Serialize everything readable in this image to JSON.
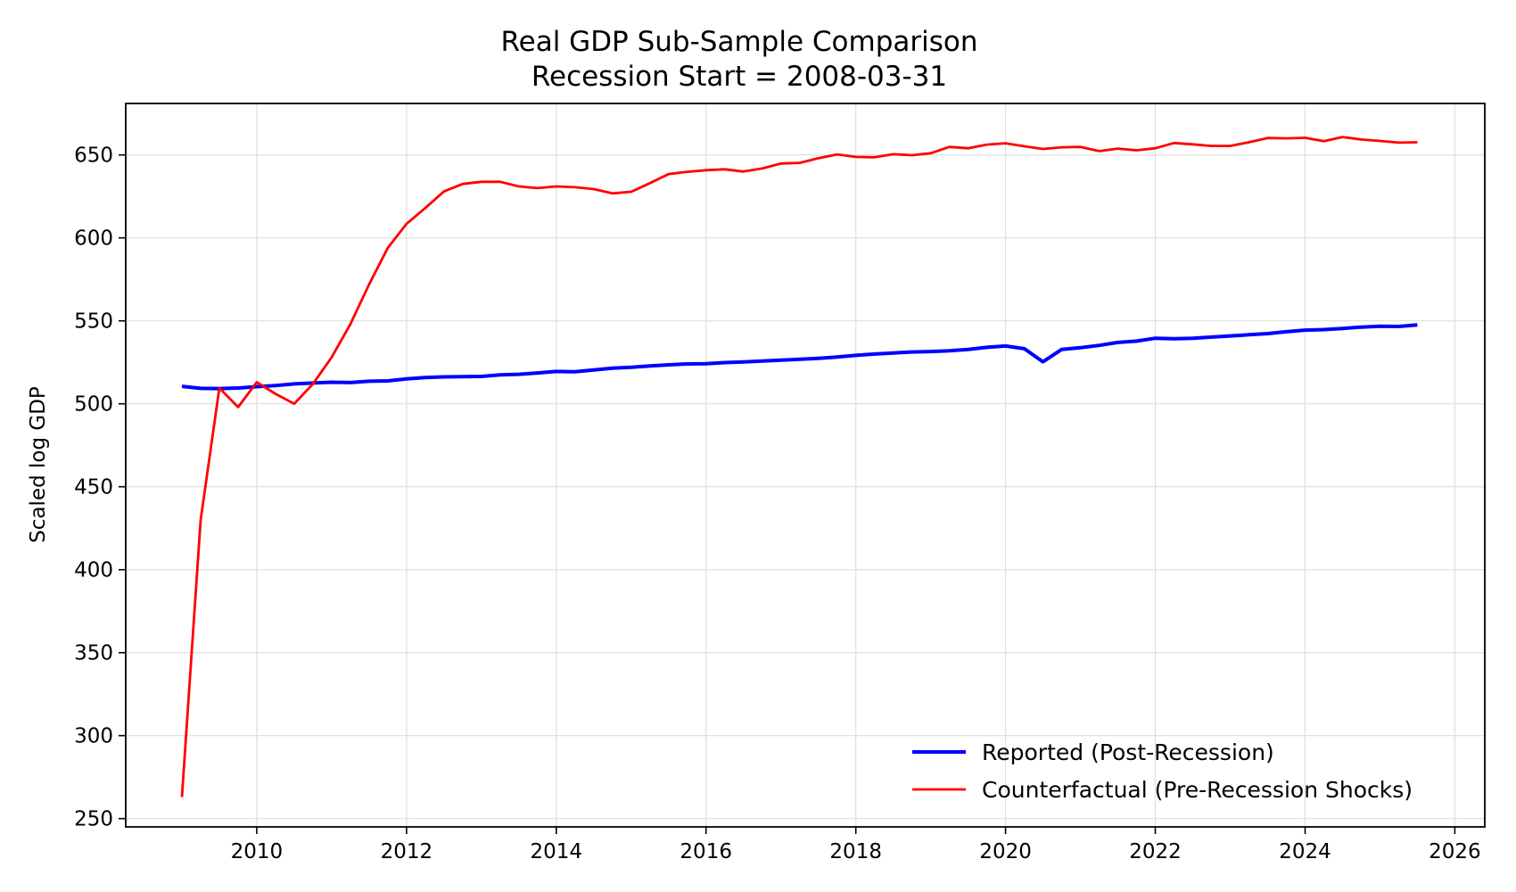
{
  "chart_data": {
    "type": "line",
    "title": "Real GDP Sub-Sample Comparison",
    "subtitle": "Recession Start = 2008-03-31",
    "xlabel": "",
    "ylabel": "Scaled log GDP",
    "xlim": [
      2008.25,
      2026.4
    ],
    "ylim": [
      245,
      681
    ],
    "xticks": [
      2010,
      2012,
      2014,
      2016,
      2018,
      2020,
      2022,
      2024,
      2026
    ],
    "yticks": [
      250,
      300,
      350,
      400,
      450,
      500,
      550,
      600,
      650
    ],
    "grid": true,
    "legend_position": "lower-right",
    "x": [
      2009.0,
      2009.25,
      2009.5,
      2009.75,
      2010.0,
      2010.25,
      2010.5,
      2010.75,
      2011.0,
      2011.25,
      2011.5,
      2011.75,
      2012.0,
      2012.25,
      2012.5,
      2012.75,
      2013.0,
      2013.25,
      2013.5,
      2013.75,
      2014.0,
      2014.25,
      2014.5,
      2014.75,
      2015.0,
      2015.25,
      2015.5,
      2015.75,
      2016.0,
      2016.25,
      2016.5,
      2016.75,
      2017.0,
      2017.25,
      2017.5,
      2017.75,
      2018.0,
      2018.25,
      2018.5,
      2018.75,
      2019.0,
      2019.25,
      2019.5,
      2019.75,
      2020.0,
      2020.25,
      2020.5,
      2020.75,
      2021.0,
      2021.25,
      2021.5,
      2021.75,
      2022.0,
      2022.25,
      2022.5,
      2022.75,
      2023.0,
      2023.25,
      2023.5,
      2023.75,
      2024.0,
      2024.25,
      2024.5,
      2024.75,
      2025.0,
      2025.25,
      2025.5
    ],
    "series": [
      {
        "name": "Reported (Post-Recession)",
        "color": "#0000ff",
        "line_width": "thick",
        "values": [
          510.5,
          509.3,
          509.2,
          509.5,
          510.3,
          511.0,
          512.0,
          512.5,
          513.0,
          512.8,
          513.6,
          513.8,
          515.0,
          515.8,
          516.2,
          516.4,
          516.5,
          517.4,
          517.8,
          518.6,
          519.5,
          519.3,
          520.4,
          521.5,
          522.0,
          522.8,
          523.5,
          524.0,
          524.2,
          524.8,
          525.2,
          525.8,
          526.3,
          526.8,
          527.4,
          528.2,
          529.2,
          530.0,
          530.6,
          531.2,
          531.5,
          532.0,
          532.8,
          534.0,
          534.8,
          533.2,
          525.3,
          532.8,
          533.8,
          535.2,
          537.0,
          537.8,
          539.5,
          539.2,
          539.5,
          540.2,
          540.9,
          541.6,
          542.3,
          543.4,
          544.4,
          544.7,
          545.4,
          546.2,
          546.7,
          546.6,
          547.5
        ]
      },
      {
        "name": "Counterfactual (Pre-Recession Shocks)",
        "color": "#ff0000",
        "line_width": "thin",
        "values": [
          263.0,
          430.0,
          509.5,
          498.0,
          513.0,
          506.0,
          500.0,
          512.0,
          528.0,
          548.0,
          572.0,
          594.0,
          608.5,
          618.0,
          628.0,
          632.5,
          633.8,
          633.8,
          631.0,
          630.0,
          631.0,
          630.5,
          629.4,
          626.8,
          627.8,
          633.0,
          638.5,
          639.8,
          640.8,
          641.3,
          640.0,
          641.8,
          644.8,
          645.2,
          648.0,
          650.3,
          648.8,
          648.6,
          650.4,
          649.8,
          651.0,
          654.8,
          654.0,
          656.2,
          657.0,
          655.2,
          653.6,
          654.6,
          654.8,
          652.3,
          653.8,
          652.8,
          654.0,
          657.2,
          656.4,
          655.4,
          655.4,
          657.6,
          660.2,
          660.0,
          660.3,
          658.3,
          660.8,
          659.3,
          658.4,
          657.4,
          657.6
        ]
      }
    ]
  }
}
